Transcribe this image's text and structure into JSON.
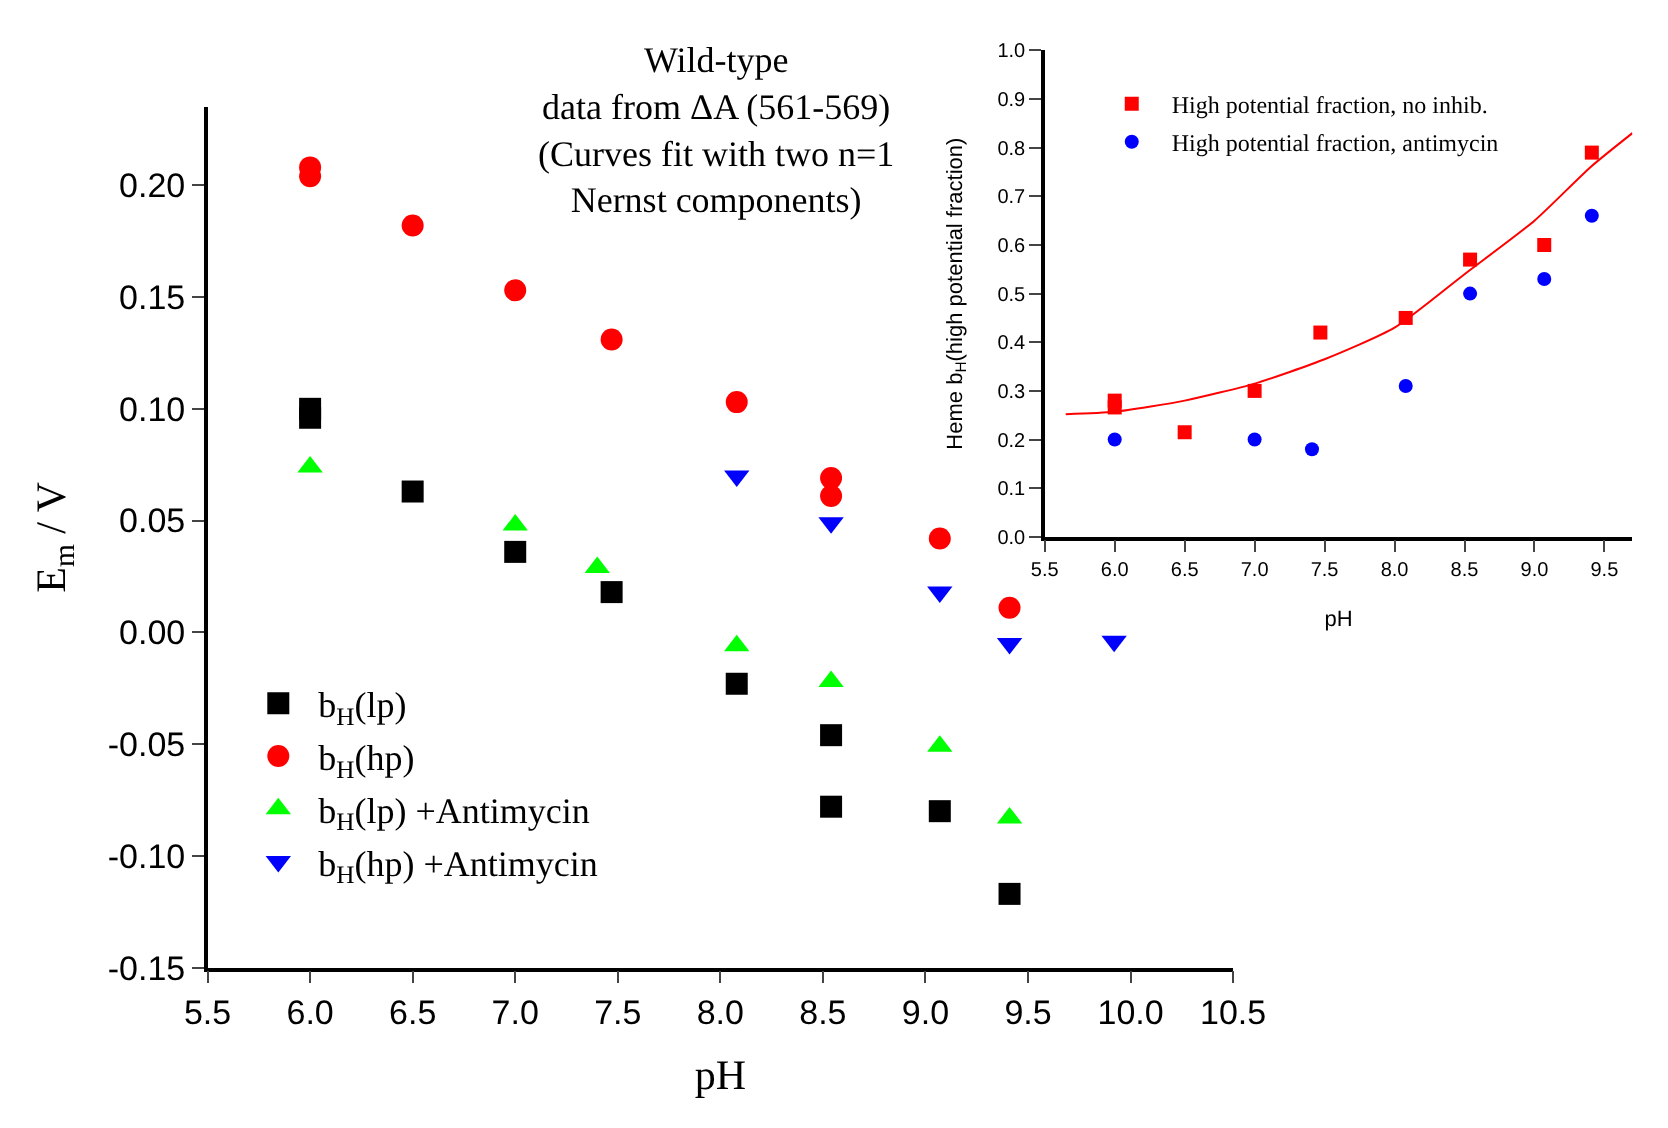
{
  "chart_data": [
    {
      "type": "scatter",
      "xlabel": "pH",
      "ylabel": "E$_{m}$ / V",
      "annotations": [
        "Wild-type\ndata from ΔA (561-569)\n(Curves fit with two n=1\nNernst components)"
      ],
      "xlim": [
        5.5,
        10.5
      ],
      "xticks": [
        5.5,
        {
          "value": 6,
          "label": "6.0"
        },
        6.5,
        {
          "value": 7,
          "label": "7.0"
        },
        7.5,
        {
          "value": 8,
          "label": "8.0"
        },
        8.5,
        {
          "value": 9,
          "label": "9.0"
        },
        9.5,
        {
          "value": 10,
          "label": "10.0"
        },
        10.5
      ],
      "ylim": [
        -0.15,
        0.235
      ],
      "yticks": [
        -0.15,
        {
          "value": -0.1,
          "label": "-0.10"
        },
        -0.05,
        {
          "value": 0,
          "label": "0.00"
        },
        0.05,
        {
          "value": 0.1,
          "label": "0.10"
        },
        0.15,
        {
          "value": 0.2,
          "label": "0.20"
        }
      ],
      "legend": "bottom left",
      "series": [
        {
          "name": "b$_{H}$(lp)",
          "color": "#000000",
          "marker": "square",
          "x": [
            6.0,
            6.0,
            6.5,
            7.0,
            7.47,
            8.08,
            8.54,
            8.54,
            9.07,
            9.41
          ],
          "values": [
            0.1,
            0.096,
            0.063,
            0.036,
            0.018,
            -0.023,
            -0.046,
            -0.078,
            -0.08,
            -0.117
          ]
        },
        {
          "name": "b$_{H}$(hp)",
          "color": "#ff0000",
          "marker": "circle",
          "x": [
            6.0,
            6.0,
            6.5,
            7.0,
            7.47,
            8.08,
            8.54,
            8.54,
            9.07,
            9.41
          ],
          "values": [
            0.208,
            0.204,
            0.182,
            0.153,
            0.131,
            0.103,
            0.069,
            0.061,
            0.042,
            0.011
          ]
        },
        {
          "name": "b$_{H}$(lp) +Antimycin",
          "color": "#00ff00",
          "marker": "triangle-up",
          "x": [
            6.0,
            7.0,
            7.4,
            8.08,
            8.54,
            9.07,
            9.41
          ],
          "values": [
            0.074,
            0.048,
            0.029,
            -0.006,
            -0.022,
            -0.051,
            -0.083
          ]
        },
        {
          "name": "b$_{H}$(hp) +Antimycin",
          "color": "#0000ff",
          "marker": "triangle-down",
          "x": [
            8.08,
            8.54,
            9.07,
            9.41,
            9.92
          ],
          "values": [
            0.07,
            0.049,
            0.018,
            -0.005,
            -0.004
          ]
        }
      ]
    },
    {
      "type": "scatter",
      "xlabel": "pH",
      "ylabel": "Heme b$_{H}$(high potential fraction)",
      "xlim": [
        5.5,
        9.7
      ],
      "xticks": [
        5.5,
        {
          "value": 6,
          "label": "6.0"
        },
        6.5,
        {
          "value": 7,
          "label": "7.0"
        },
        7.5,
        {
          "value": 8,
          "label": "8.0"
        },
        8.5,
        {
          "value": 9,
          "label": "9.0"
        },
        9.5
      ],
      "ylim": [
        0,
        1
      ],
      "yticks": [
        {
          "value": 0,
          "label": "0.0"
        },
        0.1,
        0.2,
        0.3,
        0.4,
        0.5,
        0.6,
        0.7,
        0.8,
        0.9,
        {
          "value": 1,
          "label": "1.0"
        }
      ],
      "legend": "top left",
      "series": [
        {
          "name": "High potential fraction, no inhib.",
          "color": "#ff0000",
          "marker": "square",
          "x": [
            6.0,
            6.0,
            6.5,
            7.0,
            7.47,
            8.08,
            8.54,
            9.07,
            9.41
          ],
          "values": [
            0.28,
            0.266,
            0.215,
            0.3,
            0.42,
            0.45,
            0.57,
            0.6,
            0.79
          ]
        },
        {
          "name": "High potential fraction, antimycin",
          "color": "#0000ff",
          "marker": "circle",
          "x": [
            6.0,
            7.0,
            7.41,
            8.08,
            8.54,
            9.07,
            9.41
          ],
          "values": [
            0.2,
            0.2,
            0.18,
            0.31,
            0.5,
            0.53,
            0.66
          ]
        },
        {
          "type": "line",
          "color": "#ff0000",
          "marker": "none",
          "x": [
            5.65,
            6.0,
            6.5,
            7.0,
            7.5,
            8.0,
            8.5,
            9.0,
            9.4,
            9.7
          ],
          "values": [
            0.252,
            0.257,
            0.28,
            0.315,
            0.365,
            0.43,
            0.54,
            0.65,
            0.76,
            0.83
          ]
        }
      ]
    }
  ]
}
